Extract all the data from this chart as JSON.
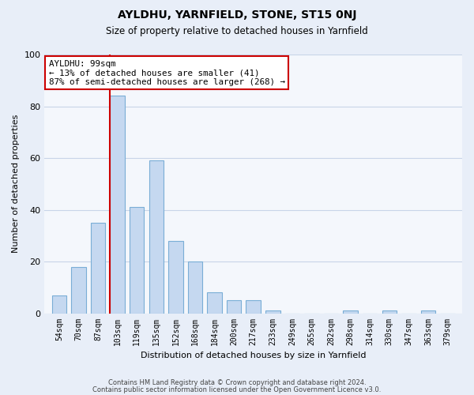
{
  "title": "AYLDHU, YARNFIELD, STONE, ST15 0NJ",
  "subtitle": "Size of property relative to detached houses in Yarnfield",
  "xlabel": "Distribution of detached houses by size in Yarnfield",
  "ylabel": "Number of detached properties",
  "bar_labels": [
    "54sqm",
    "70sqm",
    "87sqm",
    "103sqm",
    "119sqm",
    "135sqm",
    "152sqm",
    "168sqm",
    "184sqm",
    "200sqm",
    "217sqm",
    "233sqm",
    "249sqm",
    "265sqm",
    "282sqm",
    "298sqm",
    "314sqm",
    "330sqm",
    "347sqm",
    "363sqm",
    "379sqm"
  ],
  "bar_values": [
    7,
    18,
    35,
    84,
    41,
    59,
    28,
    20,
    8,
    5,
    5,
    1,
    0,
    0,
    0,
    1,
    0,
    1,
    0,
    1,
    0
  ],
  "bar_color": "#c5d8f0",
  "bar_edge_color": "#7aaed6",
  "vline_color": "#cc0000",
  "annotation_text": "AYLDHU: 99sqm\n← 13% of detached houses are smaller (41)\n87% of semi-detached houses are larger (268) →",
  "annotation_box_facecolor": "#ffffff",
  "annotation_box_edgecolor": "#cc0000",
  "ylim": [
    0,
    100
  ],
  "yticks": [
    0,
    20,
    40,
    60,
    80,
    100
  ],
  "footnote1": "Contains HM Land Registry data © Crown copyright and database right 2024.",
  "footnote2": "Contains public sector information licensed under the Open Government Licence v3.0.",
  "background_color": "#e8eef8",
  "plot_bg_color": "#f4f7fc",
  "grid_color": "#c8d4e8",
  "title_fontsize": 10,
  "subtitle_fontsize": 8.5,
  "axis_label_fontsize": 8,
  "tick_fontsize": 7,
  "footnote_fontsize": 6,
  "vline_bar_index": 3
}
